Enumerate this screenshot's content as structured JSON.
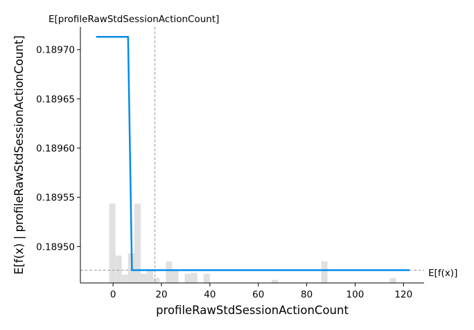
{
  "chart_data": {
    "type": "line",
    "xlabel": "profileRawStdSessionActionCount",
    "ylabel": "E[f(x) | profileRawStdSessionActionCount]",
    "xlim": [
      -13.5,
      128.5
    ],
    "ylim": [
      0.189463,
      0.189723
    ],
    "x_ticks": [
      0,
      20,
      40,
      60,
      80,
      100,
      120
    ],
    "x_tick_labels": [
      "0",
      "20",
      "40",
      "60",
      "80",
      "100",
      "120"
    ],
    "y_ticks": [
      0.1895,
      0.18955,
      0.1896,
      0.18965,
      0.1897
    ],
    "y_tick_labels": [
      "0.18950",
      "0.18955",
      "0.18960",
      "0.18965",
      "0.18970"
    ],
    "series": [
      {
        "color": "#008bea",
        "x": [
          -7,
          6.2,
          7.8,
          122.5
        ],
        "y": [
          0.189713,
          0.189713,
          0.189476,
          0.189476
        ]
      }
    ],
    "expected_x": {
      "value": 17.3,
      "label": "E[profileRawStdSessionActionCount]"
    },
    "expected_y": {
      "value": 0.189476,
      "label": "E[f(x)]"
    },
    "histogram": {
      "color": "#e0e0e0",
      "bin_width": 2.6,
      "bins": [
        {
          "x": -1.6,
          "h": 0.31
        },
        {
          "x": 1.0,
          "h": 0.107
        },
        {
          "x": 3.6,
          "h": 0.032
        },
        {
          "x": 6.2,
          "h": 0.116
        },
        {
          "x": 8.8,
          "h": 0.31
        },
        {
          "x": 11.4,
          "h": 0.036
        },
        {
          "x": 14.0,
          "h": 0.052
        },
        {
          "x": 16.6,
          "h": 0.02
        },
        {
          "x": 21.8,
          "h": 0.084
        },
        {
          "x": 24.4,
          "h": 0.052
        },
        {
          "x": 29.6,
          "h": 0.036
        },
        {
          "x": 32.2,
          "h": 0.04
        },
        {
          "x": 37.4,
          "h": 0.036
        },
        {
          "x": 65.5,
          "h": 0.012
        },
        {
          "x": 86.0,
          "h": 0.084
        },
        {
          "x": 114.3,
          "h": 0.02
        }
      ]
    },
    "grid": false,
    "legend": "none"
  }
}
